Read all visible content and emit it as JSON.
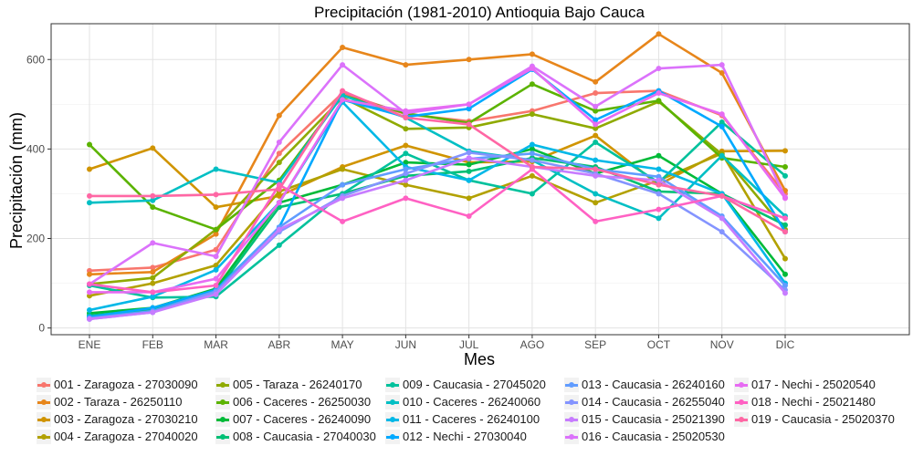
{
  "chart_data": {
    "type": "line",
    "title": "Precipitación (1981-2010)  Antioquia Bajo Cauca",
    "xlabel": "Mes",
    "ylabel": "Precipitación (mm)",
    "categories": [
      "ENE",
      "FEB",
      "MAR",
      "ABR",
      "MAY",
      "JUN",
      "JUL",
      "AGO",
      "SEP",
      "OCT",
      "NOV",
      "DIC"
    ],
    "yticks": [
      0,
      200,
      400,
      600
    ],
    "ylim": [
      -15,
      680
    ],
    "grid": true,
    "legend_position": "bottom",
    "series": [
      {
        "name": "001 - Zaragoza - 27030090",
        "color": "#F8766D",
        "values": [
          128,
          135,
          175,
          390,
          525,
          478,
          462,
          485,
          525,
          530,
          475,
          300
        ]
      },
      {
        "name": "002 - Taraza - 26250110",
        "color": "#E7861B",
        "values": [
          120,
          125,
          210,
          475,
          627,
          588,
          600,
          612,
          550,
          657,
          570,
          307
        ]
      },
      {
        "name": "003 - Zaragoza - 27030210",
        "color": "#D09400",
        "values": [
          355,
          402,
          270,
          295,
          360,
          408,
          370,
          372,
          430,
          320,
          395,
          396
        ]
      },
      {
        "name": "004 - Zaragoza - 27040020",
        "color": "#B2A100",
        "values": [
          72,
          100,
          140,
          305,
          355,
          320,
          290,
          340,
          280,
          330,
          390,
          155
        ]
      },
      {
        "name": "005 - Taraza - 26240170",
        "color": "#8FAA00",
        "values": [
          98,
          112,
          220,
          370,
          515,
          445,
          448,
          478,
          446,
          506,
          388,
          220
        ]
      },
      {
        "name": "006 - Caceres - 26250030",
        "color": "#5BB300",
        "values": [
          410,
          270,
          220,
          330,
          520,
          480,
          458,
          545,
          485,
          508,
          380,
          360
        ]
      },
      {
        "name": "007 - Caceres - 26240090",
        "color": "#00BA38",
        "values": [
          33,
          45,
          88,
          280,
          320,
          370,
          365,
          400,
          345,
          385,
          300,
          120
        ]
      },
      {
        "name": "008 - Caucasia - 27040030",
        "color": "#00BF74",
        "values": [
          28,
          40,
          80,
          270,
          300,
          340,
          350,
          380,
          360,
          305,
          300,
          230
        ]
      },
      {
        "name": "009 - Caucasia - 27045020",
        "color": "#00C19C",
        "values": [
          95,
          68,
          70,
          185,
          300,
          390,
          330,
          300,
          415,
          325,
          460,
          340
        ]
      },
      {
        "name": "010 - Caceres - 26240060",
        "color": "#00BFC4",
        "values": [
          280,
          285,
          355,
          325,
          520,
          470,
          395,
          375,
          300,
          245,
          385,
          250
        ]
      },
      {
        "name": "011 - Caceres - 26240100",
        "color": "#00B8E7",
        "values": [
          40,
          70,
          130,
          280,
          505,
          360,
          330,
          410,
          375,
          355,
          300,
          100
        ]
      },
      {
        "name": "012 - Nechi - 27030040",
        "color": "#00A9FF",
        "values": [
          25,
          45,
          85,
          225,
          510,
          472,
          490,
          578,
          465,
          530,
          450,
          215
        ]
      },
      {
        "name": "013 - Caucasia - 26240160",
        "color": "#619CFF",
        "values": [
          22,
          38,
          82,
          225,
          320,
          355,
          378,
          390,
          355,
          338,
          250,
          95
        ]
      },
      {
        "name": "014 - Caucasia - 26255040",
        "color": "#8494FF",
        "values": [
          20,
          35,
          80,
          215,
          295,
          345,
          392,
          375,
          345,
          300,
          215,
          85
        ]
      },
      {
        "name": "015 - Caucasia - 25021390",
        "color": "#C77CFF",
        "values": [
          20,
          35,
          75,
          220,
          290,
          330,
          380,
          360,
          340,
          330,
          245,
          78
        ]
      },
      {
        "name": "016 - Caucasia - 25020530",
        "color": "#DB72FB",
        "values": [
          98,
          190,
          160,
          415,
          588,
          480,
          500,
          585,
          495,
          580,
          588,
          292
        ]
      },
      {
        "name": "017 - Nechi - 25020540",
        "color": "#E76BF3",
        "values": [
          80,
          80,
          110,
          280,
          510,
          485,
          500,
          580,
          455,
          525,
          478,
          290
        ]
      },
      {
        "name": "018 - Nechi - 25021480",
        "color": "#FF61C3",
        "values": [
          98,
          80,
          95,
          320,
          238,
          290,
          250,
          355,
          238,
          265,
          295,
          245
        ]
      },
      {
        "name": "019 - Caucasia - 25020370",
        "color": "#FF67A4",
        "values": [
          295,
          295,
          298,
          310,
          530,
          470,
          455,
          360,
          355,
          320,
          295,
          215
        ]
      }
    ]
  }
}
